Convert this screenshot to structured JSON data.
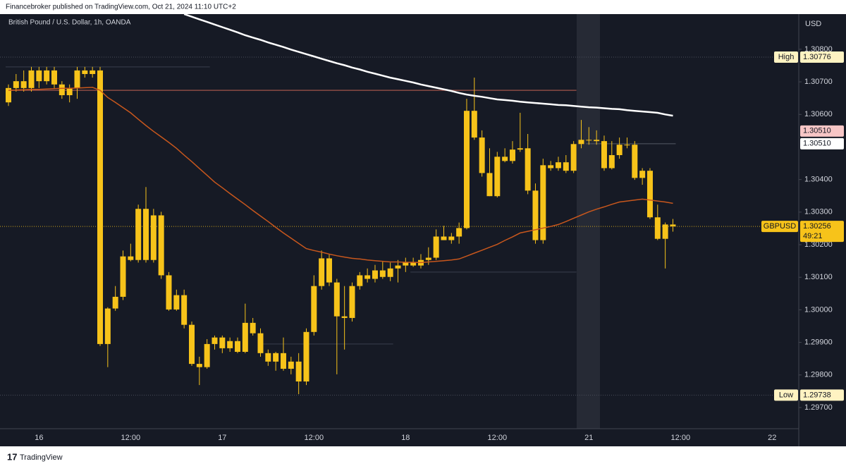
{
  "header": "Financebroker published on TradingView.com, Oct 21, 2024 11:10 UTC+2",
  "footer": "TradingView",
  "chart_data": {
    "type": "candlestick",
    "title": "British Pound / U.S. Dollar, 1h, OANDA",
    "currency": "USD",
    "color": "#f7c31a",
    "categories": [
      null,
      null,
      null,
      null,
      "16",
      null,
      null,
      null,
      null,
      null,
      null,
      null,
      null,
      null,
      null,
      null,
      "12:00",
      null,
      null,
      null,
      null,
      null,
      null,
      null,
      null,
      null,
      null,
      null,
      "17",
      null,
      null,
      null,
      null,
      null,
      null,
      null,
      null,
      null,
      null,
      null,
      "12:00",
      null,
      null,
      null,
      null,
      null,
      null,
      null,
      null,
      null,
      null,
      null,
      "18",
      null,
      null,
      null,
      null,
      null,
      null,
      null,
      null,
      null,
      null,
      null,
      "12:00",
      null,
      null,
      null,
      null,
      null,
      null,
      null,
      null,
      null,
      null,
      null,
      "21",
      null,
      null,
      null,
      null,
      null,
      null,
      null,
      null,
      null,
      null,
      null,
      "12:00",
      null,
      null,
      null,
      null,
      null,
      null,
      null,
      null,
      null,
      null,
      null,
      "22"
    ],
    "open": [
      1.30637,
      1.30681,
      1.30702,
      1.30681,
      1.30735,
      1.30702,
      1.30735,
      1.30692,
      1.30659,
      1.30681,
      1.30735,
      1.30724,
      1.30735,
      1.29895,
      1.30004,
      1.3004,
      1.30164,
      1.30153,
      1.3031,
      1.30153,
      1.3029,
      1.30106,
      1.30001,
      1.30045,
      1.29954,
      1.29834,
      1.29824,
      1.29895,
      1.29915,
      1.29882,
      1.29904,
      1.29871,
      1.2996,
      1.29928,
      1.29867,
      1.29841,
      1.29867,
      1.29819,
      1.29841,
      1.2978,
      1.29932,
      1.30073,
      1.30158,
      1.30084,
      1.2998,
      1.29975,
      1.30073,
      1.30106,
      1.30095,
      1.30121,
      1.30101,
      1.30127,
      1.30136,
      1.30145,
      1.30136,
      1.30153,
      1.3016,
      1.30225,
      1.30214,
      1.30225,
      1.30251,
      1.30611,
      1.30529,
      1.3042,
      1.30349,
      1.3047,
      1.30457,
      1.30492,
      1.30496,
      1.30366,
      1.30214,
      1.30444,
      1.30435,
      1.30453,
      1.30427,
      1.30509,
      1.30522,
      1.30522,
      1.30518,
      1.30435,
      1.30475,
      1.30507,
      1.30507,
      1.30405,
      1.30427,
      1.30284,
      1.30218,
      1.30262,
      null,
      null,
      null,
      null,
      null,
      null,
      null,
      null,
      null,
      null,
      null,
      null,
      null
    ],
    "high": [
      1.30692,
      1.30724,
      1.30735,
      1.30746,
      1.30746,
      1.30746,
      1.30746,
      1.30702,
      1.30692,
      1.30746,
      1.30746,
      1.30746,
      1.30746,
      1.30008,
      1.30073,
      1.30182,
      1.30203,
      1.30323,
      1.30377,
      1.3031,
      1.30301,
      1.30116,
      1.30062,
      1.30062,
      1.29964,
      1.29856,
      1.2991,
      1.29921,
      1.29921,
      1.29915,
      1.29915,
      1.30019,
      1.29975,
      1.29943,
      1.29878,
      1.29871,
      1.29915,
      1.29856,
      1.29867,
      1.29943,
      1.30106,
      1.30182,
      1.30171,
      1.30095,
      1.30073,
      1.30084,
      1.30116,
      1.30127,
      1.30138,
      1.30149,
      1.30145,
      1.30153,
      1.3016,
      1.3016,
      1.30171,
      1.30192,
      1.30247,
      1.30258,
      1.30236,
      1.30268,
      1.30648,
      1.30713,
      1.30551,
      1.30496,
      1.30485,
      1.30496,
      1.30518,
      1.30605,
      1.3054,
      1.30388,
      1.30464,
      1.30457,
      1.3047,
      1.30475,
      1.30518,
      1.30583,
      1.30561,
      1.30551,
      1.30535,
      1.30518,
      1.30529,
      1.30529,
      1.30518,
      1.30435,
      1.30435,
      1.30323,
      1.30268,
      1.30279,
      null,
      null,
      null,
      null,
      null,
      null,
      null,
      null,
      null,
      null,
      null,
      null,
      null
    ],
    "low": [
      1.30626,
      1.3067,
      1.3067,
      1.3067,
      1.30681,
      1.30692,
      1.30681,
      1.30648,
      1.30637,
      1.30648,
      1.30713,
      1.30713,
      1.29889,
      1.29824,
      1.29997,
      1.3003,
      1.30149,
      1.30145,
      1.30145,
      1.30145,
      1.30095,
      1.29997,
      1.29997,
      1.29943,
      1.29828,
      1.29769,
      1.29819,
      1.29878,
      1.29867,
      1.29871,
      1.29867,
      1.29867,
      1.29921,
      1.29856,
      1.29828,
      1.29813,
      1.29813,
      1.29802,
      1.29741,
      1.29769,
      1.29921,
      1.30062,
      1.30073,
      1.29802,
      1.29878,
      1.29964,
      1.30062,
      1.30084,
      1.30084,
      1.30095,
      1.30088,
      1.30084,
      1.30116,
      1.30132,
      1.30127,
      1.30138,
      1.30153,
      1.30214,
      1.30203,
      1.30203,
      1.30247,
      1.30522,
      1.30409,
      1.30349,
      1.30345,
      1.30453,
      1.30449,
      1.30485,
      1.30355,
      1.30203,
      1.30203,
      1.30427,
      1.30427,
      1.3042,
      1.3042,
      1.30496,
      1.30507,
      1.30507,
      1.30427,
      1.30431,
      1.30464,
      1.30496,
      1.30399,
      1.30384,
      1.30279,
      1.30214,
      1.30127,
      1.3024,
      null,
      null,
      null,
      null,
      null,
      null,
      null,
      null,
      null,
      null,
      null,
      null,
      null
    ],
    "close": [
      1.30681,
      1.30702,
      1.30681,
      1.30735,
      1.30702,
      1.30735,
      1.30692,
      1.30659,
      1.30681,
      1.30735,
      1.30724,
      1.30735,
      1.29895,
      1.30004,
      1.3004,
      1.30164,
      1.30153,
      1.3031,
      1.30153,
      1.3029,
      1.30106,
      1.30001,
      1.30045,
      1.29954,
      1.29834,
      1.29824,
      1.29895,
      1.29915,
      1.29882,
      1.29904,
      1.29871,
      1.2996,
      1.29928,
      1.29867,
      1.29841,
      1.29867,
      1.29819,
      1.29841,
      1.2978,
      1.29932,
      1.30073,
      1.30158,
      1.30084,
      1.2998,
      1.29975,
      1.30073,
      1.30106,
      1.30095,
      1.30121,
      1.30101,
      1.30127,
      1.30136,
      1.30145,
      1.30136,
      1.30153,
      1.3016,
      1.30225,
      1.30214,
      1.30225,
      1.30251,
      1.30611,
      1.30529,
      1.3042,
      1.30349,
      1.3047,
      1.30457,
      1.30492,
      1.30496,
      1.30366,
      1.30214,
      1.30444,
      1.30435,
      1.30453,
      1.30427,
      1.30509,
      1.30522,
      1.30522,
      1.30518,
      1.30435,
      1.30475,
      1.30507,
      1.30507,
      1.30405,
      1.30427,
      1.30284,
      1.30218,
      1.30262,
      1.30256,
      null,
      null,
      null,
      null,
      null,
      null,
      null,
      null,
      null,
      null,
      null,
      null,
      null
    ],
    "series": [
      {
        "color": "#ffffff",
        "values": [
          null,
          null,
          null,
          null,
          null,
          null,
          null,
          null,
          null,
          null,
          null,
          null,
          null,
          null,
          null,
          null,
          null,
          null,
          null,
          null,
          null,
          null,
          null,
          1.30908,
          1.309,
          1.30892,
          1.30884,
          1.30876,
          1.30868,
          1.3086,
          1.30852,
          1.30843,
          1.30836,
          1.30829,
          1.30821,
          1.30814,
          1.30807,
          1.30799,
          1.30792,
          1.30785,
          1.30778,
          1.30771,
          1.30764,
          1.30757,
          1.30751,
          1.30744,
          1.30738,
          1.30731,
          1.30725,
          1.30719,
          1.30713,
          1.30708,
          1.30703,
          1.30698,
          1.30692,
          1.30687,
          1.30682,
          1.30677,
          1.30672,
          1.30666,
          1.30661,
          1.30657,
          1.30654,
          1.3065,
          1.30646,
          1.30644,
          1.30642,
          1.30639,
          1.30637,
          1.30635,
          1.30633,
          1.30631,
          1.30629,
          1.30628,
          1.30626,
          1.30624,
          1.30622,
          1.30621,
          1.30619,
          1.30617,
          1.30616,
          1.30613,
          1.30611,
          1.30609,
          1.30607,
          1.30605,
          1.306,
          1.30596,
          null,
          null,
          null,
          null,
          null,
          null,
          null,
          null,
          null,
          null,
          null,
          null,
          null
        ]
      },
      {
        "color": "#c8571d",
        "values": [
          1.30674,
          1.30675,
          1.30676,
          1.30677,
          1.30677,
          1.30678,
          1.30679,
          1.3068,
          1.3068,
          1.30681,
          1.30682,
          1.30683,
          1.30674,
          1.30652,
          1.30637,
          1.30621,
          1.30605,
          1.30585,
          1.30566,
          1.30548,
          1.30531,
          1.30514,
          1.30496,
          1.30475,
          1.30455,
          1.30434,
          1.30413,
          1.30392,
          1.30375,
          1.30357,
          1.3034,
          1.30323,
          1.30305,
          1.30288,
          1.30271,
          1.30253,
          1.30236,
          1.3022,
          1.30204,
          1.30188,
          1.30182,
          1.30177,
          1.30171,
          1.30166,
          1.30162,
          1.30158,
          1.30156,
          1.30153,
          1.30151,
          1.30149,
          1.30147,
          1.30147,
          1.30146,
          1.30146,
          1.30145,
          1.30147,
          1.30149,
          1.30151,
          1.30153,
          1.30156,
          1.30165,
          1.30174,
          1.30183,
          1.30192,
          1.30201,
          1.30213,
          1.30224,
          1.30236,
          1.30241,
          1.30246,
          1.30251,
          1.30256,
          1.30262,
          1.30271,
          1.30281,
          1.30291,
          1.30301,
          1.30309,
          1.30316,
          1.30324,
          1.30331,
          1.30334,
          1.30337,
          1.3034,
          1.30337,
          1.30334,
          1.30331,
          1.30327,
          null,
          null,
          null,
          null,
          null,
          null,
          null,
          null,
          null,
          null,
          null,
          null,
          null
        ]
      }
    ],
    "ylim": [
      1.29635,
      1.30908
    ],
    "yticks": [
      {
        "value": 1.308,
        "label": "1.30800"
      },
      {
        "value": 1.307,
        "label": "1.30700"
      },
      {
        "value": 1.306,
        "label": "1.30600"
      },
      {
        "value": 1.304,
        "label": "1.30400"
      },
      {
        "value": 1.303,
        "label": "1.30300"
      },
      {
        "value": 1.302,
        "label": "1.30200"
      },
      {
        "value": 1.301,
        "label": "1.30100"
      },
      {
        "value": 1.3,
        "label": "1.30000"
      },
      {
        "value": 1.299,
        "label": "1.29900"
      },
      {
        "value": 1.298,
        "label": "1.29800"
      },
      {
        "value": 1.297,
        "label": "1.29700"
      }
    ],
    "high_marker": {
      "label": "High",
      "value": 1.30776
    },
    "low_marker": {
      "label": "Low",
      "value": 1.29738
    },
    "level_markers": [
      {
        "value": 1.3051,
        "label": "1.30510",
        "color": "#f7c6c6"
      },
      {
        "value": 1.3051,
        "label": "1.30510",
        "color": "#ffffff"
      }
    ],
    "last_price": {
      "symbol": "GBPUSD",
      "value": 1.30256,
      "countdown": "49:21"
    },
    "drawn_levels": [
      {
        "value": 1.30674,
        "color": "#8a4a44"
      },
      {
        "value": 1.30746,
        "color": "#3a3f4d"
      },
      {
        "value": 1.3051,
        "color": "#555a66"
      },
      {
        "value": 1.30116,
        "color": "#3a3f4d"
      },
      {
        "value": 1.29895,
        "color": "#3a3f4d"
      }
    ]
  }
}
